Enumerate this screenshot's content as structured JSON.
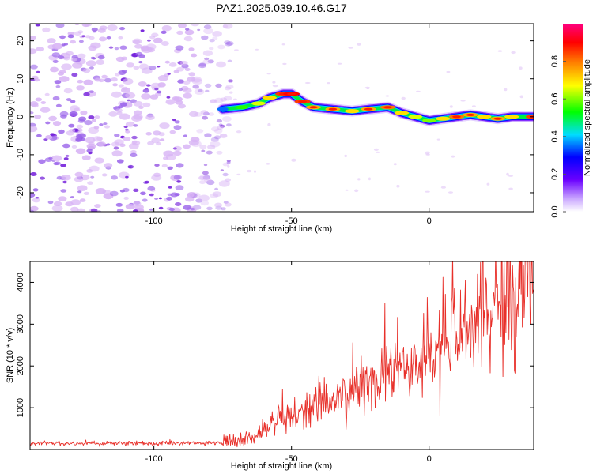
{
  "title": "PAZ1.2025.039.10.46.G17",
  "colors": {
    "snr_line": "#e8302a",
    "low_noise": "#d8b4f5",
    "mid_noise": "#9a63ea",
    "high_noise": "#6a10d8"
  },
  "chart_data": [
    {
      "type": "heatmap",
      "xlabel": "Height of straight line (km)",
      "ylabel": "Frequency (Hz)",
      "xlim": [
        -145,
        38
      ],
      "ylim": [
        -25,
        24.5
      ],
      "xticks": [
        -100,
        -50,
        0
      ],
      "yticks": [
        -20,
        -10,
        0,
        10,
        20
      ],
      "ridge": {
        "x": [
          -75,
          -68,
          -62,
          -58,
          -53,
          -50,
          -46,
          -42,
          -35,
          -28,
          -22,
          -15,
          -10,
          -5,
          0,
          5,
          10,
          15,
          20,
          25,
          30,
          38
        ],
        "frequency": [
          2,
          2.5,
          3.5,
          5,
          6,
          6,
          4,
          2.5,
          2,
          1.5,
          2,
          2.5,
          1,
          0,
          -1,
          -0.5,
          0,
          0.5,
          0,
          -0.5,
          0,
          0
        ],
        "normalized_amplitude": [
          0.35,
          0.55,
          0.65,
          0.7,
          0.85,
          0.9,
          0.85,
          0.75,
          0.75,
          0.7,
          0.75,
          0.8,
          0.7,
          0.65,
          0.6,
          0.7,
          0.8,
          0.75,
          0.7,
          0.75,
          0.7,
          0.85
        ]
      },
      "noise_region_x": [
        -145,
        -75
      ],
      "colorbar": {
        "label": "Normalized spectral amplitude",
        "range": [
          0,
          1
        ],
        "ticks": [
          "0.0",
          "0.2",
          "0.4",
          "0.6",
          "0.8"
        ],
        "tick_values": [
          0,
          0.2,
          0.4,
          0.6,
          0.8
        ]
      }
    },
    {
      "type": "line",
      "xlabel": "Height of straight line (km)",
      "ylabel": "SNR (10 * v/v)",
      "xlim": [
        -145,
        38
      ],
      "ylim": [
        0,
        4500
      ],
      "xticks": [
        -100,
        -50,
        0
      ],
      "yticks": [
        1000,
        2000,
        3000,
        4000
      ],
      "baseline_x": [
        -145,
        -75
      ],
      "baseline_snr": 150,
      "trend_x": [
        -145,
        -75,
        -68,
        -60,
        -55,
        -50,
        -45,
        -40,
        -35,
        -30,
        -25,
        -20,
        -15,
        -10,
        -5,
        0,
        5,
        10,
        15,
        20,
        25,
        30,
        35,
        38
      ],
      "trend_snr": [
        150,
        150,
        250,
        450,
        700,
        800,
        950,
        1100,
        1200,
        1300,
        1500,
        1600,
        1750,
        1900,
        2050,
        2200,
        2450,
        2650,
        2900,
        3150,
        3400,
        3650,
        3850,
        4000
      ]
    }
  ]
}
